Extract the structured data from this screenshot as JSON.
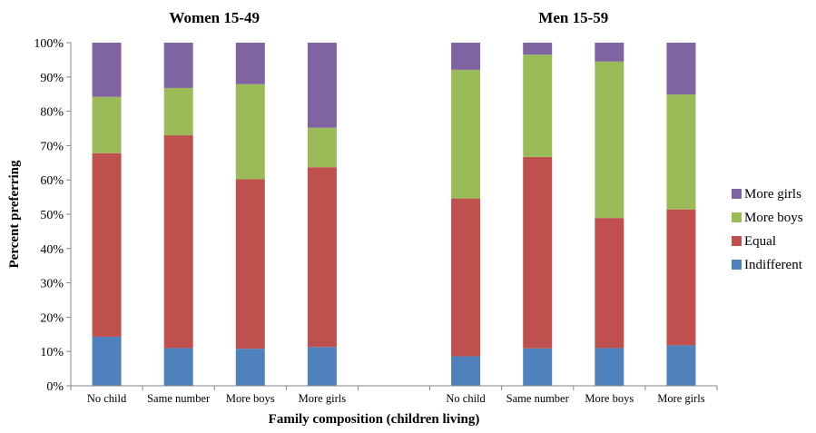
{
  "chart_data": {
    "type": "bar",
    "stacked": true,
    "normalized_percent": true,
    "title": "",
    "panels": [
      {
        "title": "Women 15-49"
      },
      {
        "title": "Men 15-59"
      }
    ],
    "categories": [
      "No child",
      "Same number",
      "More boys",
      "More girls"
    ],
    "xlabel": "Family composition (children living)",
    "ylabel": "Percent preferring",
    "ylim": [
      0,
      100
    ],
    "y_ticks": [
      "0%",
      "10%",
      "20%",
      "30%",
      "40%",
      "50%",
      "60%",
      "70%",
      "80%",
      "90%",
      "100%"
    ],
    "grid": false,
    "legend_position": "right",
    "series": [
      {
        "name": "Indifferent",
        "color": "#4F81BD",
        "women": [
          14.3,
          11.0,
          10.8,
          11.3
        ],
        "men": [
          8.6,
          10.9,
          11.0,
          11.8
        ]
      },
      {
        "name": "Equal",
        "color": "#C0504D",
        "women": [
          53.5,
          62.0,
          49.4,
          52.4
        ],
        "men": [
          46.0,
          55.8,
          37.9,
          39.6
        ]
      },
      {
        "name": "More boys",
        "color": "#9BBB59",
        "women": [
          16.4,
          13.8,
          27.7,
          11.5
        ],
        "men": [
          37.5,
          29.8,
          45.6,
          33.5
        ]
      },
      {
        "name": "More girls",
        "color": "#8064A2",
        "women": [
          15.8,
          13.2,
          12.1,
          24.8
        ],
        "men": [
          7.9,
          3.5,
          5.5,
          15.1
        ]
      }
    ]
  }
}
